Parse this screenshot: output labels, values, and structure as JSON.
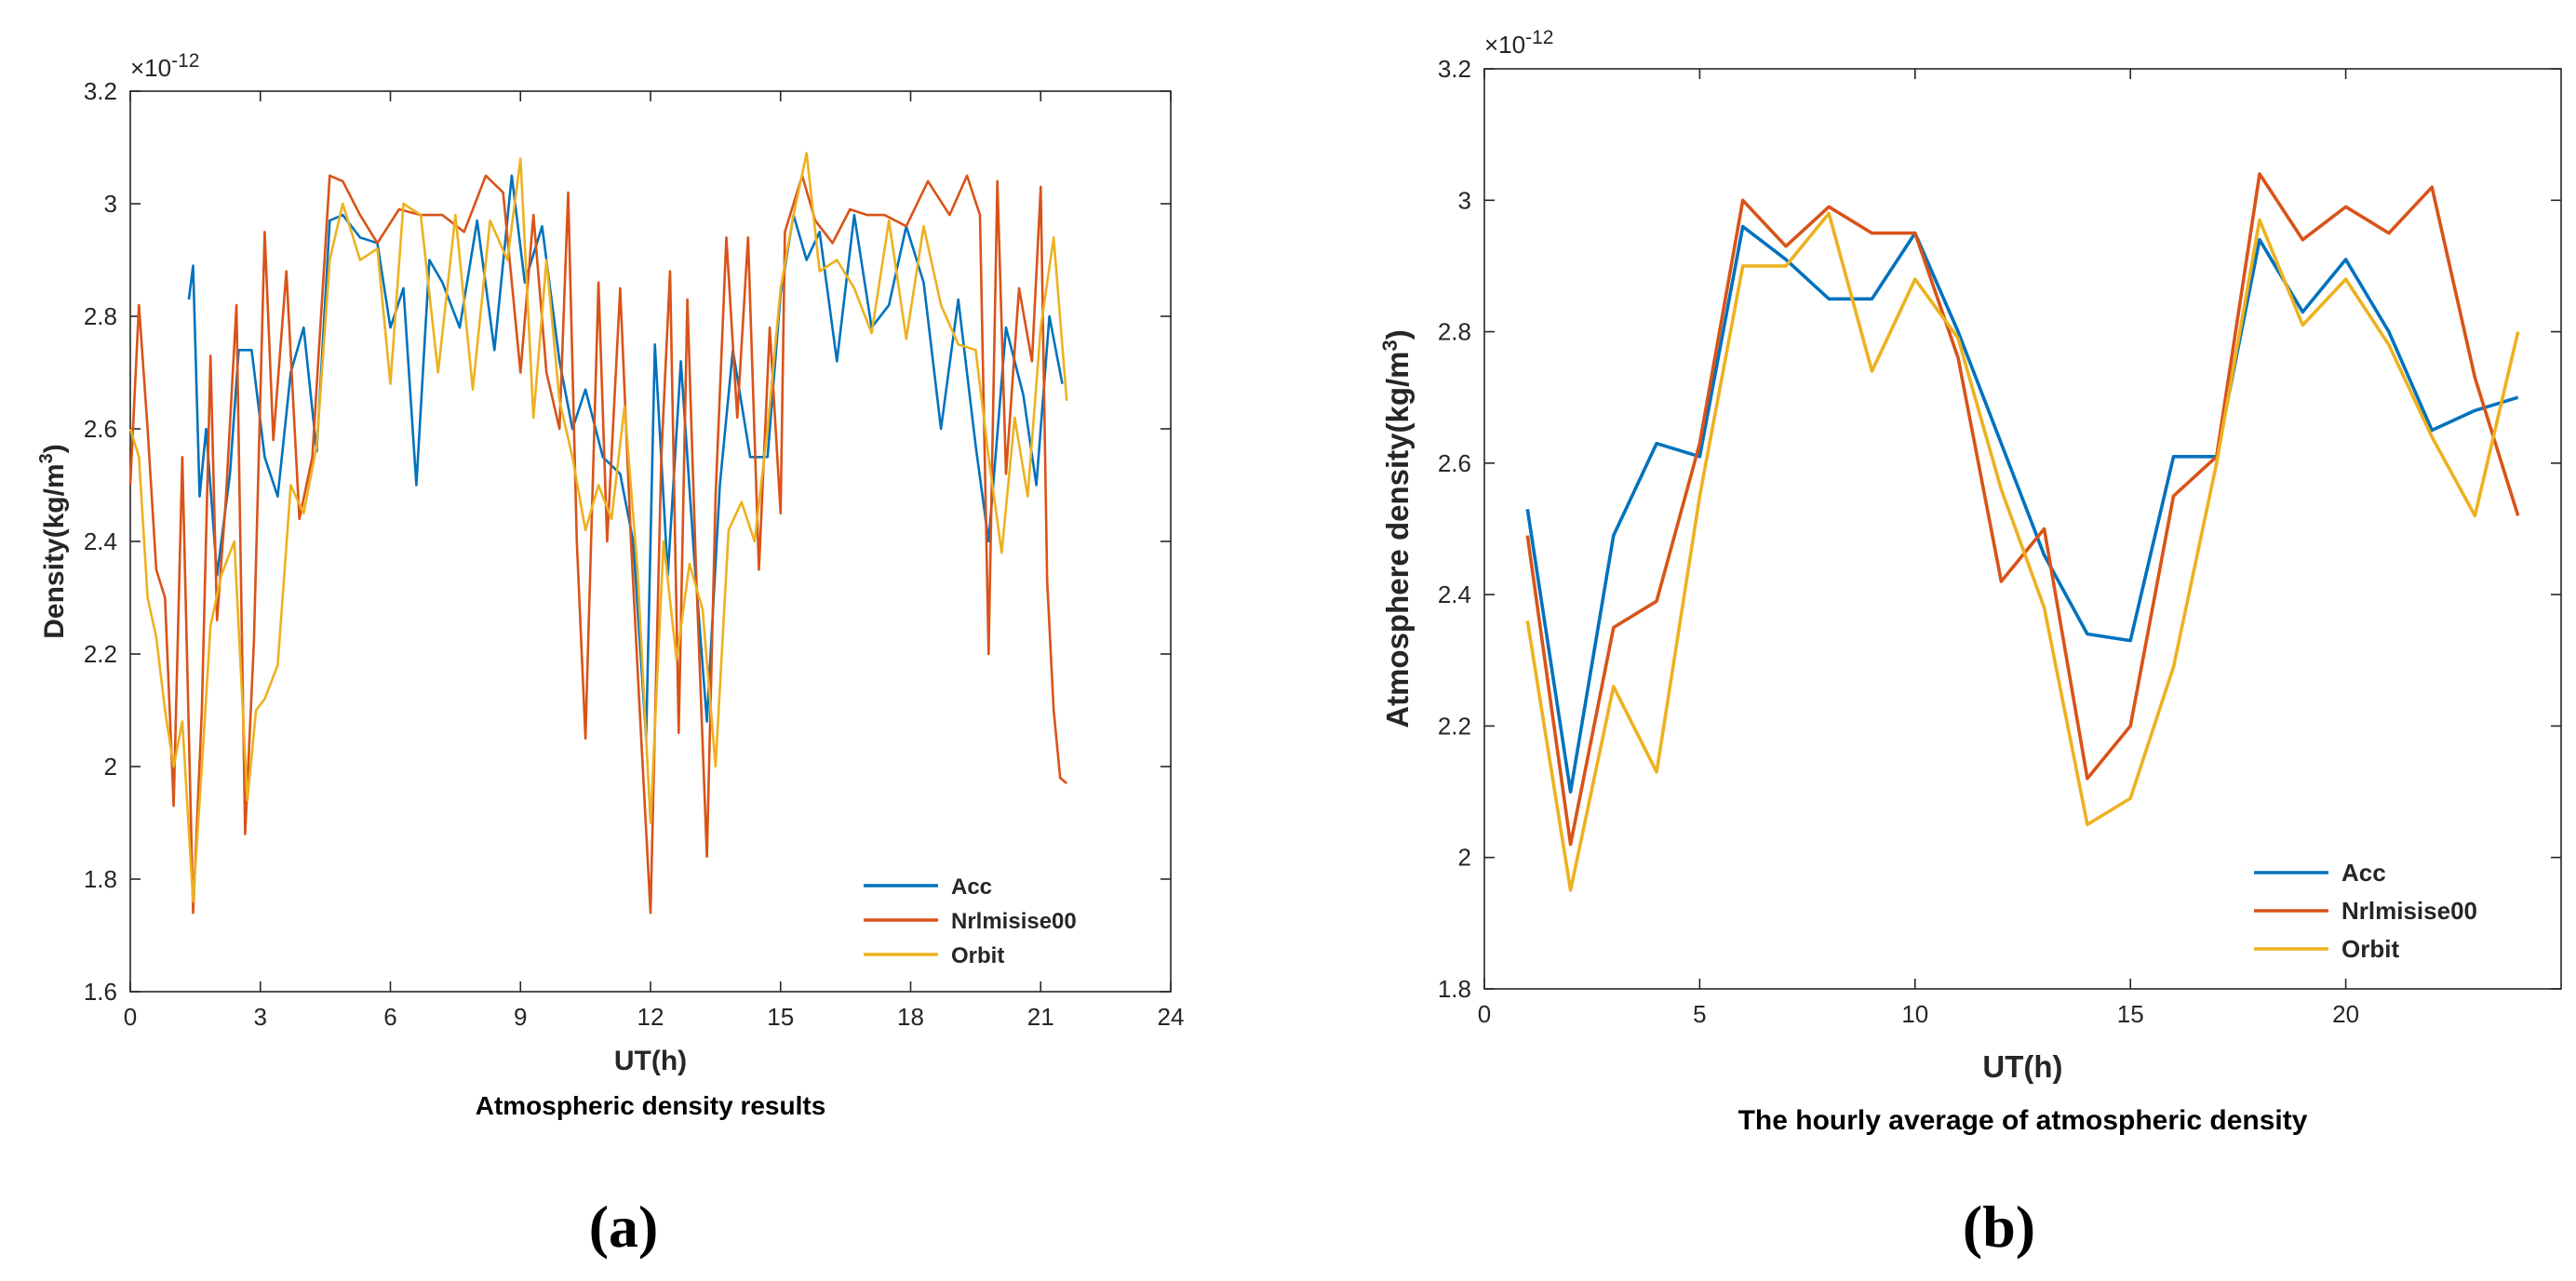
{
  "chart_data": [
    {
      "type": "line",
      "caption": "Atmospheric density results",
      "panel_label": "(a)",
      "xlabel": "UT(h)",
      "ylabel_main": "Density(kg/m",
      "ylabel_sup": "3",
      "ylabel_end": ")",
      "exponent_base": "×10",
      "exponent_power": "-12",
      "xlim": [
        0,
        24
      ],
      "ylim": [
        1.6,
        3.2
      ],
      "xticks": [
        0,
        3,
        6,
        9,
        12,
        15,
        18,
        21,
        24
      ],
      "xtick_labels": [
        "0",
        "3",
        "6",
        "9",
        "12",
        "15",
        "18",
        "21",
        "24"
      ],
      "yticks": [
        1.6,
        1.8,
        2.0,
        2.2,
        2.4,
        2.6,
        2.8,
        3.0,
        3.2
      ],
      "ytick_labels": [
        "1.6",
        "1.8",
        "2",
        "2.2",
        "2.4",
        "2.6",
        "2.8",
        "3",
        "3.2"
      ],
      "legend_position": "bottom-right",
      "grid": false,
      "series": [
        {
          "name": "Acc",
          "color": "#0072BD",
          "x": [
            1.35,
            1.45,
            1.6,
            1.75,
            2.0,
            2.3,
            2.5,
            2.8,
            3.1,
            3.4,
            3.7,
            4.0,
            4.3,
            4.6,
            4.9,
            5.3,
            5.7,
            6.0,
            6.3,
            6.6,
            6.9,
            7.2,
            7.6,
            8.0,
            8.4,
            8.8,
            9.1,
            9.5,
            9.9,
            10.2,
            10.5,
            10.9,
            11.3,
            11.6,
            11.9,
            12.1,
            12.4,
            12.7,
            13.0,
            13.3,
            13.6,
            13.9,
            14.3,
            14.7,
            15.0,
            15.3,
            15.6,
            15.9,
            16.3,
            16.7,
            17.1,
            17.5,
            17.9,
            18.3,
            18.7,
            19.1,
            19.5,
            19.8,
            20.2,
            20.6,
            20.9,
            21.2,
            21.5
          ],
          "values": [
            2.83,
            2.89,
            2.48,
            2.6,
            2.34,
            2.52,
            2.74,
            2.74,
            2.55,
            2.48,
            2.7,
            2.78,
            2.56,
            2.97,
            2.98,
            2.94,
            2.93,
            2.78,
            2.85,
            2.5,
            2.9,
            2.86,
            2.78,
            2.97,
            2.74,
            3.05,
            2.86,
            2.96,
            2.72,
            2.6,
            2.67,
            2.55,
            2.52,
            2.4,
            2.05,
            2.75,
            2.34,
            2.72,
            2.38,
            2.08,
            2.5,
            2.74,
            2.55,
            2.55,
            2.84,
            2.98,
            2.9,
            2.95,
            2.72,
            2.98,
            2.78,
            2.82,
            2.96,
            2.86,
            2.6,
            2.83,
            2.57,
            2.4,
            2.78,
            2.66,
            2.5,
            2.8,
            2.68
          ]
        },
        {
          "name": "Nrlmisise00",
          "color": "#D95319",
          "x": [
            0.0,
            0.2,
            0.4,
            0.6,
            0.8,
            1.0,
            1.2,
            1.45,
            1.65,
            1.85,
            2.0,
            2.2,
            2.45,
            2.65,
            2.85,
            3.1,
            3.3,
            3.6,
            3.9,
            4.2,
            4.6,
            4.9,
            5.3,
            5.7,
            6.2,
            6.7,
            7.2,
            7.7,
            8.2,
            8.6,
            9.0,
            9.3,
            9.6,
            9.9,
            10.1,
            10.3,
            10.5,
            10.8,
            11.0,
            11.3,
            11.55,
            11.75,
            12.0,
            12.25,
            12.45,
            12.65,
            12.85,
            13.05,
            13.3,
            13.5,
            13.75,
            14.0,
            14.25,
            14.5,
            14.75,
            15.0,
            15.1,
            15.3,
            15.5,
            15.8,
            16.2,
            16.6,
            17.0,
            17.4,
            17.9,
            18.4,
            18.9,
            19.3,
            19.6,
            19.8,
            20.0,
            20.2,
            20.5,
            20.8,
            21.0,
            21.15,
            21.3,
            21.45,
            21.6
          ],
          "values": [
            2.5,
            2.82,
            2.6,
            2.35,
            2.3,
            1.93,
            2.55,
            1.74,
            2.1,
            2.73,
            2.26,
            2.47,
            2.82,
            1.88,
            2.22,
            2.95,
            2.58,
            2.88,
            2.44,
            2.55,
            3.05,
            3.04,
            2.98,
            2.93,
            2.99,
            2.98,
            2.98,
            2.95,
            3.05,
            3.02,
            2.7,
            2.98,
            2.7,
            2.6,
            3.02,
            2.4,
            2.05,
            2.86,
            2.4,
            2.85,
            2.4,
            2.1,
            1.74,
            2.55,
            2.88,
            2.06,
            2.83,
            2.35,
            1.84,
            2.48,
            2.94,
            2.62,
            2.94,
            2.35,
            2.78,
            2.45,
            2.95,
            3.0,
            3.05,
            2.97,
            2.93,
            2.99,
            2.98,
            2.98,
            2.96,
            3.04,
            2.98,
            3.05,
            2.98,
            2.2,
            3.04,
            2.52,
            2.85,
            2.72,
            3.03,
            2.33,
            2.1,
            1.98,
            1.97
          ]
        },
        {
          "name": "Orbit",
          "color": "#EDB120",
          "x": [
            0.0,
            0.2,
            0.4,
            0.6,
            0.8,
            1.0,
            1.2,
            1.45,
            1.65,
            1.85,
            2.1,
            2.4,
            2.7,
            2.9,
            3.1,
            3.4,
            3.7,
            4.0,
            4.3,
            4.6,
            4.9,
            5.3,
            5.7,
            6.0,
            6.3,
            6.7,
            7.1,
            7.5,
            7.9,
            8.3,
            8.7,
            9.0,
            9.3,
            9.6,
            9.9,
            10.2,
            10.5,
            10.8,
            11.1,
            11.4,
            11.7,
            12.0,
            12.3,
            12.6,
            12.9,
            13.2,
            13.5,
            13.8,
            14.1,
            14.4,
            14.7,
            15.0,
            15.3,
            15.6,
            15.9,
            16.3,
            16.7,
            17.1,
            17.5,
            17.9,
            18.3,
            18.7,
            19.1,
            19.5,
            19.8,
            20.1,
            20.4,
            20.7,
            21.0,
            21.3,
            21.6
          ],
          "values": [
            2.6,
            2.55,
            2.3,
            2.23,
            2.1,
            2.0,
            2.08,
            1.76,
            2.0,
            2.25,
            2.34,
            2.4,
            1.94,
            2.1,
            2.12,
            2.18,
            2.5,
            2.45,
            2.57,
            2.9,
            3.0,
            2.9,
            2.92,
            2.68,
            3.0,
            2.98,
            2.7,
            2.98,
            2.67,
            2.97,
            2.9,
            3.08,
            2.62,
            2.9,
            2.65,
            2.55,
            2.42,
            2.5,
            2.44,
            2.64,
            2.35,
            1.9,
            2.4,
            2.19,
            2.36,
            2.28,
            2.0,
            2.42,
            2.47,
            2.4,
            2.6,
            2.85,
            2.98,
            3.09,
            2.88,
            2.9,
            2.85,
            2.77,
            2.97,
            2.76,
            2.96,
            2.82,
            2.75,
            2.74,
            2.55,
            2.38,
            2.62,
            2.48,
            2.78,
            2.94,
            2.65
          ]
        }
      ]
    },
    {
      "type": "line",
      "caption": "The hourly average of atmospheric density",
      "panel_label": "(b)",
      "xlabel": "UT(h)",
      "ylabel_main": "Atmosphere density(kg/m",
      "ylabel_sup": "3",
      "ylabel_end": ")",
      "exponent_base": "×10",
      "exponent_power": "-12",
      "xlim": [
        0,
        25
      ],
      "ylim": [
        1.8,
        3.2
      ],
      "xticks": [
        0,
        5,
        10,
        15,
        20
      ],
      "xtick_labels": [
        "0",
        "5",
        "10",
        "15",
        "20"
      ],
      "yticks": [
        1.8,
        2.0,
        2.2,
        2.4,
        2.6,
        2.8,
        3.0,
        3.2
      ],
      "ytick_labels": [
        "1.8",
        "2",
        "2.2",
        "2.4",
        "2.6",
        "2.8",
        "3",
        "3.2"
      ],
      "legend_position": "bottom-right",
      "grid": false,
      "series": [
        {
          "name": "Acc",
          "color": "#0072BD",
          "x": [
            1,
            2,
            3,
            4,
            5,
            6,
            7,
            8,
            9,
            10,
            11,
            12,
            13,
            14,
            15,
            16,
            17,
            18,
            19,
            20,
            21,
            22,
            23,
            24
          ],
          "values": [
            2.53,
            2.1,
            2.49,
            2.63,
            2.61,
            2.96,
            2.91,
            2.85,
            2.85,
            2.95,
            2.8,
            2.63,
            2.46,
            2.34,
            2.33,
            2.61,
            2.61,
            2.94,
            2.83,
            2.91,
            2.8,
            2.65,
            2.68,
            2.7
          ]
        },
        {
          "name": "Nrlmisise00",
          "color": "#D95319",
          "x": [
            1,
            2,
            3,
            4,
            5,
            6,
            7,
            8,
            9,
            10,
            11,
            12,
            13,
            14,
            15,
            16,
            17,
            18,
            19,
            20,
            21,
            22,
            23,
            24
          ],
          "values": [
            2.49,
            2.02,
            2.35,
            2.39,
            2.63,
            3.0,
            2.93,
            2.99,
            2.95,
            2.95,
            2.76,
            2.42,
            2.5,
            2.12,
            2.2,
            2.55,
            2.61,
            3.04,
            2.94,
            2.99,
            2.95,
            3.02,
            2.73,
            2.52
          ]
        },
        {
          "name": "Orbit",
          "color": "#EDB120",
          "x": [
            1,
            2,
            3,
            4,
            5,
            6,
            7,
            8,
            9,
            10,
            11,
            12,
            13,
            14,
            15,
            16,
            17,
            18,
            19,
            20,
            21,
            22,
            23,
            24
          ],
          "values": [
            2.36,
            1.95,
            2.26,
            2.13,
            2.55,
            2.9,
            2.9,
            2.98,
            2.74,
            2.88,
            2.79,
            2.56,
            2.38,
            2.05,
            2.09,
            2.29,
            2.6,
            2.97,
            2.81,
            2.88,
            2.78,
            2.64,
            2.52,
            2.8
          ]
        }
      ]
    }
  ]
}
